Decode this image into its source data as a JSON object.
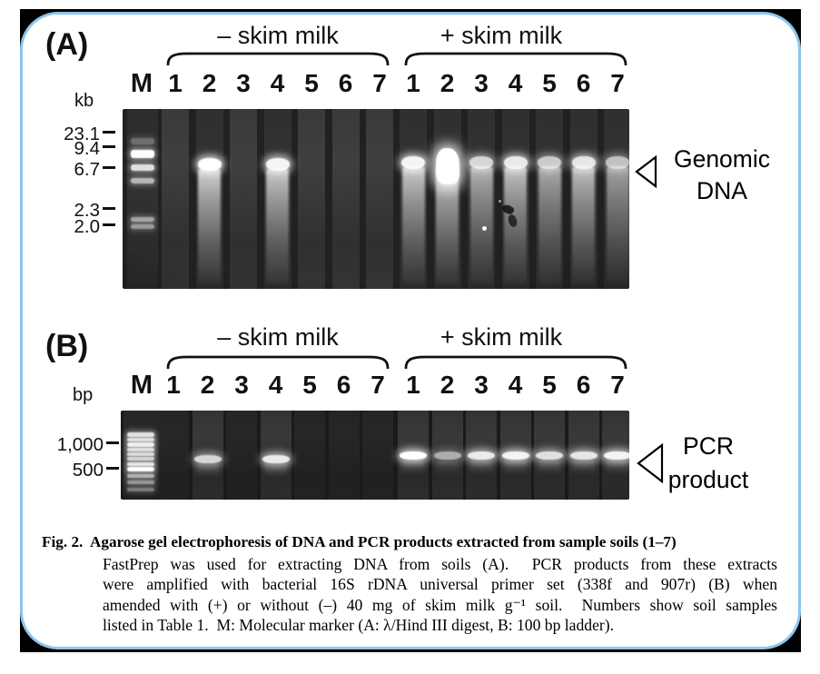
{
  "figure": {
    "frame": {
      "border_color": "#8cc6ee",
      "mat_color": "#000000",
      "background": "#ffffff"
    },
    "panels": [
      {
        "id": "A",
        "panel_label": "(A)",
        "unit_label": "kb",
        "marker_lane_label": "M",
        "groups": [
          {
            "id": "minus",
            "header": "– skim milk",
            "lane_labels": [
              "1",
              "2",
              "3",
              "4",
              "5",
              "6",
              "7"
            ],
            "lane_band_intensity": [
              0,
              1,
              0,
              0.95,
              0,
              0,
              0
            ]
          },
          {
            "id": "plus",
            "header": "+ skim milk",
            "lane_labels": [
              "1",
              "2",
              "3",
              "4",
              "5",
              "6",
              "7"
            ],
            "lane_band_intensity": [
              0.95,
              1,
              0.8,
              0.9,
              0.75,
              0.88,
              0.7
            ]
          }
        ],
        "size_markers": [
          {
            "label": "23.1"
          },
          {
            "label": "9.4"
          },
          {
            "label": "6.7"
          },
          {
            "label": "2.3"
          },
          {
            "label": "2.0"
          }
        ],
        "arrow_label_lines": [
          "Genomic",
          "DNA"
        ]
      },
      {
        "id": "B",
        "panel_label": "(B)",
        "unit_label": "bp",
        "marker_lane_label": "M",
        "groups": [
          {
            "id": "minus",
            "header": "– skim milk",
            "lane_labels": [
              "1",
              "2",
              "3",
              "4",
              "5",
              "6",
              "7"
            ],
            "lane_band_intensity": [
              0,
              0.8,
              0,
              0.9,
              0,
              0,
              0
            ]
          },
          {
            "id": "plus",
            "header": "+ skim milk",
            "lane_labels": [
              "1",
              "2",
              "3",
              "4",
              "5",
              "6",
              "7"
            ],
            "lane_band_intensity": [
              1,
              0.6,
              0.9,
              0.95,
              0.85,
              0.88,
              0.95
            ]
          }
        ],
        "size_markers": [
          {
            "label": "1,000"
          },
          {
            "label": "500"
          }
        ],
        "arrow_label_lines": [
          "PCR",
          "product"
        ]
      }
    ],
    "caption": {
      "heading": "Fig. 2.  Agarose gel electrophoresis of DNA and PCR products extracted from sample soils (1–7)",
      "body_lines": [
        "FastPrep was used for extracting DNA from soils (A).  PCR products from these extracts",
        "were amplified with bacterial 16S rDNA universal primer set (338f and 907r) (B) when",
        "amended with (+) or without (–) 40 mg of skim milk g⁻¹ soil.  Numbers show soil samples",
        "listed in Table 1.  M: Molecular marker (A: λ/Hind III digest, B: 100 bp ladder)."
      ]
    }
  }
}
